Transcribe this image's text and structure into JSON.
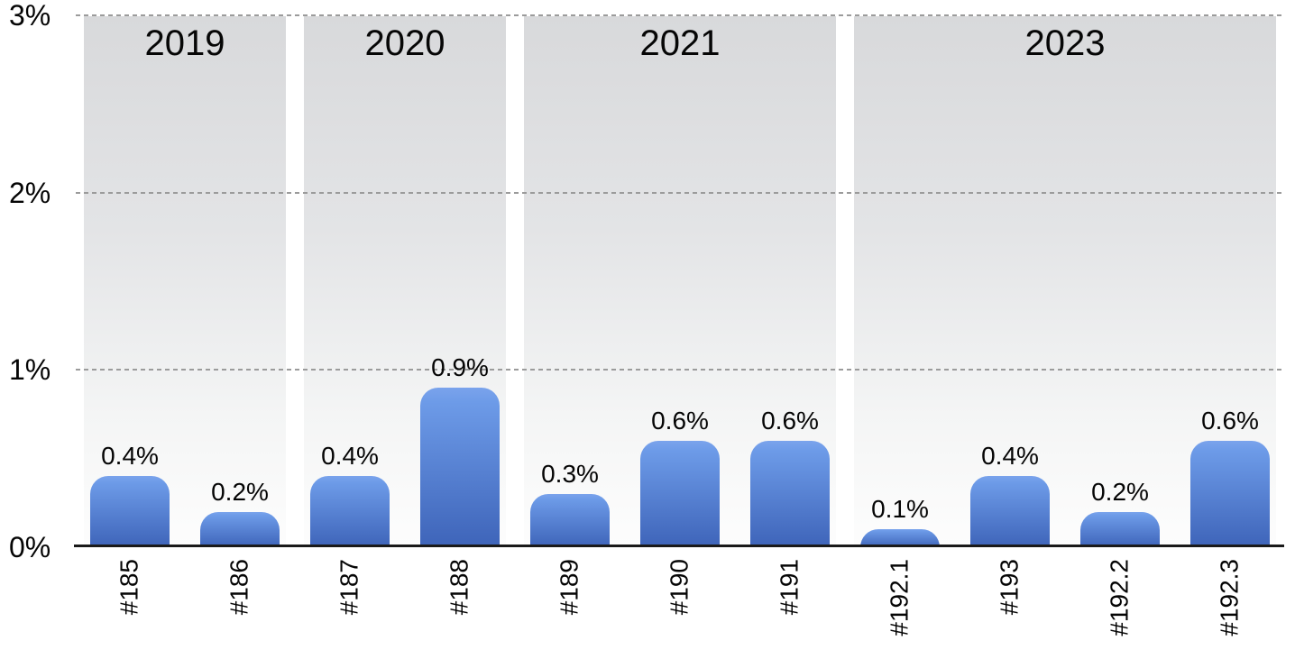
{
  "chart_data": {
    "type": "bar",
    "title": "",
    "xlabel": "",
    "ylabel": "",
    "unit": "%",
    "ylim": [
      0,
      3
    ],
    "yticks": [
      "0%",
      "1%",
      "2%",
      "3%"
    ],
    "grid": {
      "style": "dashed",
      "orientation": "horizontal",
      "at_values": [
        1,
        2,
        3
      ]
    },
    "legend": {
      "visible": false
    },
    "groups": [
      {
        "year": "2019",
        "bars": [
          {
            "id": "#185",
            "value": 0.4,
            "display": "0.4%"
          },
          {
            "id": "#186",
            "value": 0.2,
            "display": "0.2%"
          }
        ]
      },
      {
        "year": "2020",
        "bars": [
          {
            "id": "#187",
            "value": 0.4,
            "display": "0.4%"
          },
          {
            "id": "#188",
            "value": 0.9,
            "display": "0.9%"
          }
        ]
      },
      {
        "year": "2021",
        "bars": [
          {
            "id": "#189",
            "value": 0.3,
            "display": "0.3%"
          },
          {
            "id": "#190",
            "value": 0.6,
            "display": "0.6%"
          },
          {
            "id": "#191",
            "value": 0.6,
            "display": "0.6%"
          }
        ]
      },
      {
        "year": "2023",
        "bars": [
          {
            "id": "#192.1",
            "value": 0.1,
            "display": "0.1%"
          },
          {
            "id": "#193",
            "value": 0.4,
            "display": "0.4%"
          },
          {
            "id": "#192.2",
            "value": 0.2,
            "display": "0.2%"
          },
          {
            "id": "#192.3",
            "value": 0.6,
            "display": "0.6%"
          }
        ]
      }
    ],
    "colors": {
      "bar_gradient_top": "#7aa3ec",
      "bar_gradient_bottom": "#3e64b9",
      "band_gradient_top": "#d8d9db",
      "band_gradient_bottom": "#fdfdfd",
      "gridline": "#9b9b9b",
      "axis_line": "#1a1a1a",
      "text": "#050505",
      "background": "#ffffff"
    }
  }
}
